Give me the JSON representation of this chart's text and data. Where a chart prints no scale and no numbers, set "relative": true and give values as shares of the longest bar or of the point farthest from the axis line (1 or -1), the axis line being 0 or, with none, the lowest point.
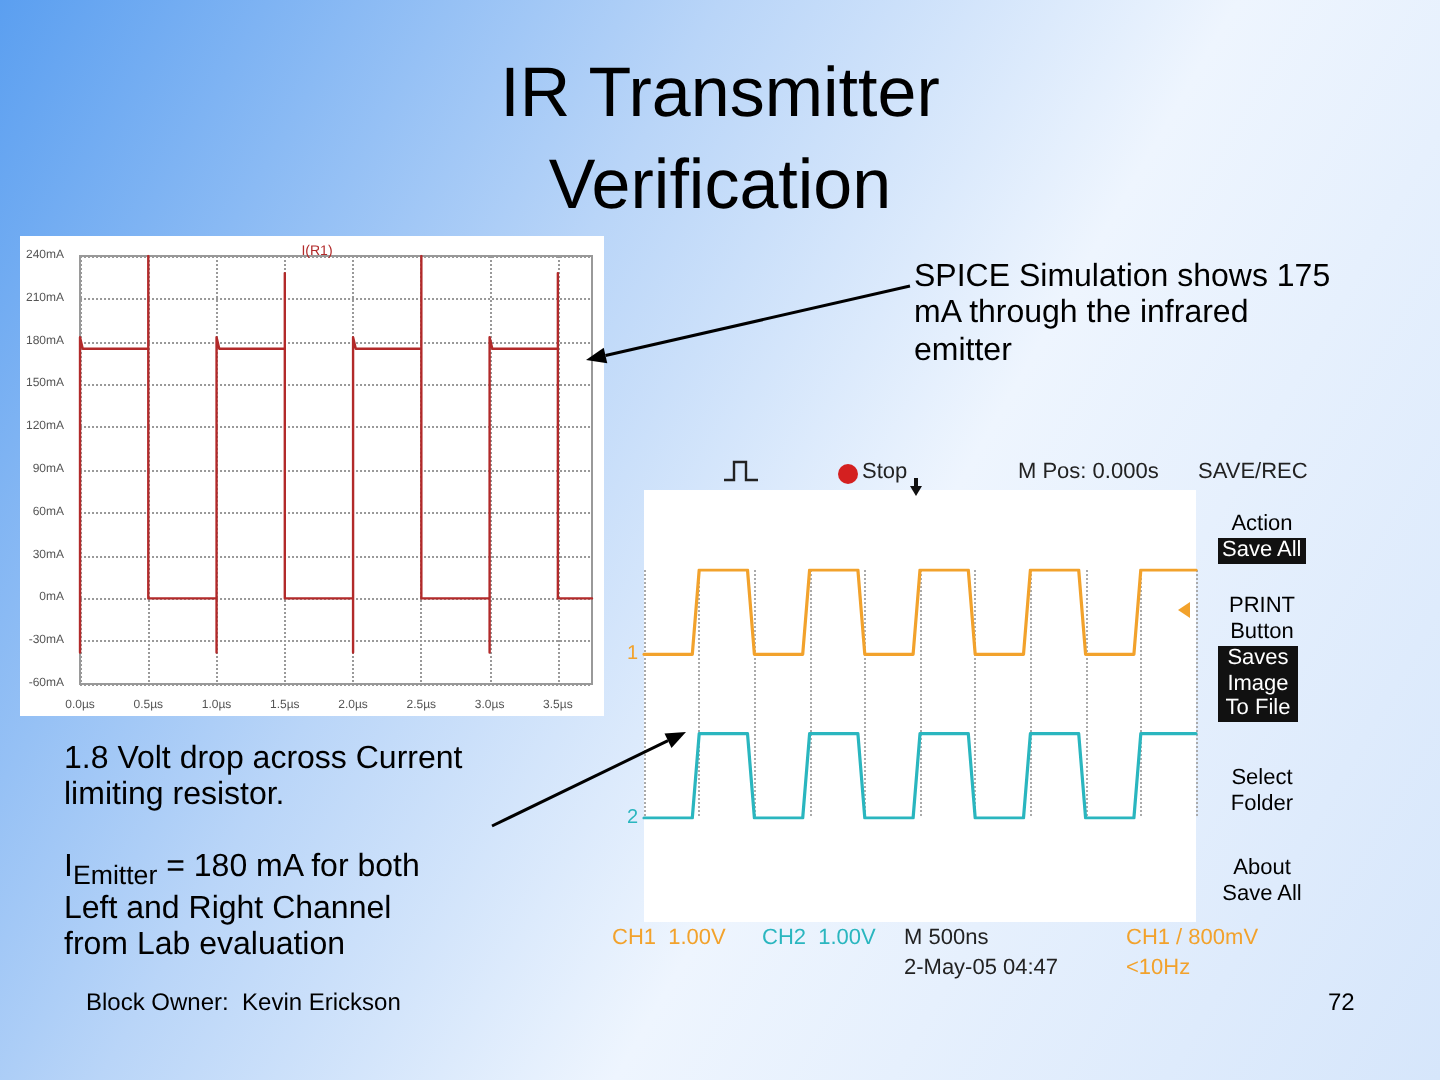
{
  "chart_data": [
    {
      "type": "line",
      "title": "IR Transmitter Verification",
      "series": [
        {
          "name": "I(R1)",
          "color": "#b22a2a",
          "x": [
            0,
            0,
            0.02,
            0.5,
            0.5,
            0.5,
            1.0,
            1.0,
            1.0,
            1.02,
            1.5,
            1.5,
            1.5,
            2.0,
            2.0,
            2.0,
            2.02,
            2.5,
            2.5,
            2.5,
            3.0,
            3.0,
            3.0,
            3.02,
            3.5,
            3.5,
            3.5,
            3.75
          ],
          "values": [
            -38,
            183,
            175,
            175,
            240,
            0,
            0,
            -38,
            183,
            175,
            175,
            228,
            0,
            0,
            -38,
            183,
            175,
            175,
            240,
            0,
            0,
            -38,
            183,
            175,
            175,
            228,
            0,
            0
          ]
        }
      ],
      "xlim": [
        0,
        3.75
      ],
      "xticks": [
        {
          "value": 0,
          "label": "0.0µs"
        },
        {
          "value": 0.5,
          "label": "0.5µs"
        },
        {
          "value": 1,
          "label": "1.0µs"
        },
        {
          "value": 1.5,
          "label": "1.5µs"
        },
        {
          "value": 2,
          "label": "2.0µs"
        },
        {
          "value": 2.5,
          "label": "2.5µs"
        },
        {
          "value": 3,
          "label": "3.0µs"
        },
        {
          "value": 3.5,
          "label": "3.5µs"
        }
      ],
      "ylim": [
        -60,
        240
      ],
      "yticks": [
        {
          "value": -60,
          "label": "-60mA"
        },
        {
          "value": -30,
          "label": "-30mA"
        },
        {
          "value": 0,
          "label": "0mA"
        },
        {
          "value": 30,
          "label": "30mA"
        },
        {
          "value": 60,
          "label": "60mA"
        },
        {
          "value": 90,
          "label": "90mA"
        },
        {
          "value": 120,
          "label": "120mA"
        },
        {
          "value": 150,
          "label": "150mA"
        },
        {
          "value": 180,
          "label": "180mA"
        },
        {
          "value": 210,
          "label": "210mA"
        },
        {
          "value": 240,
          "label": "240mA"
        }
      ],
      "grid": true,
      "marker": "none",
      "legend": "top",
      "annotations": [
        "SPICE Simulation shows 175 mA through the infrared emitter",
        "Block Owner:  Kevin Erickson",
        "72"
      ]
    },
    {
      "type": "line",
      "relative": true,
      "grid": "x",
      "marker": "none",
      "categories": [
        null,
        null,
        null,
        null,
        null,
        null,
        null,
        null,
        null,
        null,
        null,
        null,
        null,
        null,
        null,
        null,
        null,
        null,
        null,
        null,
        null,
        null,
        null,
        null,
        null,
        null,
        null,
        null,
        null,
        null,
        null,
        null,
        null,
        null,
        null,
        null,
        null,
        null,
        null,
        null,
        null,
        null,
        null,
        null,
        null,
        null,
        null,
        null,
        null,
        null,
        null,
        null,
        null,
        null,
        null,
        null,
        null,
        null,
        null,
        null,
        null,
        null,
        null,
        null,
        null,
        null,
        null,
        null,
        null,
        null,
        null,
        null,
        null,
        null,
        null,
        null,
        null,
        null,
        null,
        null,
        null
      ],
      "series": [
        {
          "name": "1",
          "color": "#f2a22c",
          "values": [
            0.66,
            0.66,
            0.66,
            0.66,
            0.66,
            0.66,
            0.66,
            0.66,
            1,
            1,
            1,
            1,
            1,
            1,
            1,
            1,
            0.66,
            0.66,
            0.66,
            0.66,
            0.66,
            0.66,
            0.66,
            0.66,
            1,
            1,
            1,
            1,
            1,
            1,
            1,
            1,
            0.66,
            0.66,
            0.66,
            0.66,
            0.66,
            0.66,
            0.66,
            0.66,
            1,
            1,
            1,
            1,
            1,
            1,
            1,
            1,
            0.66,
            0.66,
            0.66,
            0.66,
            0.66,
            0.66,
            0.66,
            0.66,
            1,
            1,
            1,
            1,
            1,
            1,
            1,
            1,
            0.66,
            0.66,
            0.66,
            0.66,
            0.66,
            0.66,
            0.66,
            0.66,
            1,
            1,
            1,
            1,
            1,
            1,
            1,
            1,
            1
          ]
        },
        {
          "name": "2",
          "color": "#2ab6bf",
          "values": [
            0,
            0,
            0,
            0,
            0,
            0,
            0,
            0,
            0.34,
            0.34,
            0.34,
            0.34,
            0.34,
            0.34,
            0.34,
            0.34,
            0,
            0,
            0,
            0,
            0,
            0,
            0,
            0,
            0.34,
            0.34,
            0.34,
            0.34,
            0.34,
            0.34,
            0.34,
            0.34,
            0,
            0,
            0,
            0,
            0,
            0,
            0,
            0,
            0.34,
            0.34,
            0.34,
            0.34,
            0.34,
            0.34,
            0.34,
            0.34,
            0,
            0,
            0,
            0,
            0,
            0,
            0,
            0,
            0.34,
            0.34,
            0.34,
            0.34,
            0.34,
            0.34,
            0.34,
            0.34,
            0,
            0,
            0,
            0,
            0,
            0,
            0,
            0,
            0.34,
            0.34,
            0.34,
            0.34,
            0.34,
            0.34,
            0.34,
            0.34,
            0.34
          ]
        }
      ],
      "annotations": [
        "Stop",
        "M Pos: 0.000s",
        "SAVE/REC",
        "Action",
        "Save All",
        "PRINT Button",
        "Saves Image To File",
        "Select Folder",
        "About Save All",
        "CH1  1.00V",
        "CH2  1.00V",
        "M 500ns",
        "2-May-05 04:47",
        "CH1 / 800mV",
        "<10Hz",
        "1.8 Volt drop across Current limiting resistor.",
        "I$_{Emitter}$ = 180 mA for both Left and Right Channel from Lab evaluation"
      ]
    }
  ]
}
